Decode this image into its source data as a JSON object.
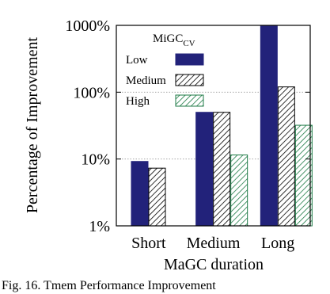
{
  "figure": {
    "caption": "Fig. 16.    Tmem Performance Improvement"
  },
  "chart_data": {
    "type": "bar",
    "title": "",
    "xlabel": "MaGC duration",
    "ylabel": "Percentage of Improvement",
    "yscale": "log",
    "ylim": [
      1,
      1000
    ],
    "yticks": [
      {
        "value": 1,
        "label": "1%"
      },
      {
        "value": 10,
        "label": "10%"
      },
      {
        "value": 100,
        "label": "100%"
      },
      {
        "value": 1000,
        "label": "1000%"
      }
    ],
    "grid": "horizontal dotted at major ticks",
    "categories": [
      "Short",
      "Medium",
      "Long"
    ],
    "legend": {
      "title": "MiGC",
      "title_subscript": "CV",
      "position": "top-left"
    },
    "series": [
      {
        "name": "Low",
        "style": "solid",
        "color": "#22227a",
        "values": [
          9.2,
          50,
          1000
        ]
      },
      {
        "name": "Medium",
        "style": "hatched-black",
        "color": "#000000",
        "values": [
          7.3,
          50,
          120
        ]
      },
      {
        "name": "High",
        "style": "hatched-green",
        "color": "#1d7a45",
        "values": [
          null,
          11.5,
          32
        ]
      }
    ]
  }
}
